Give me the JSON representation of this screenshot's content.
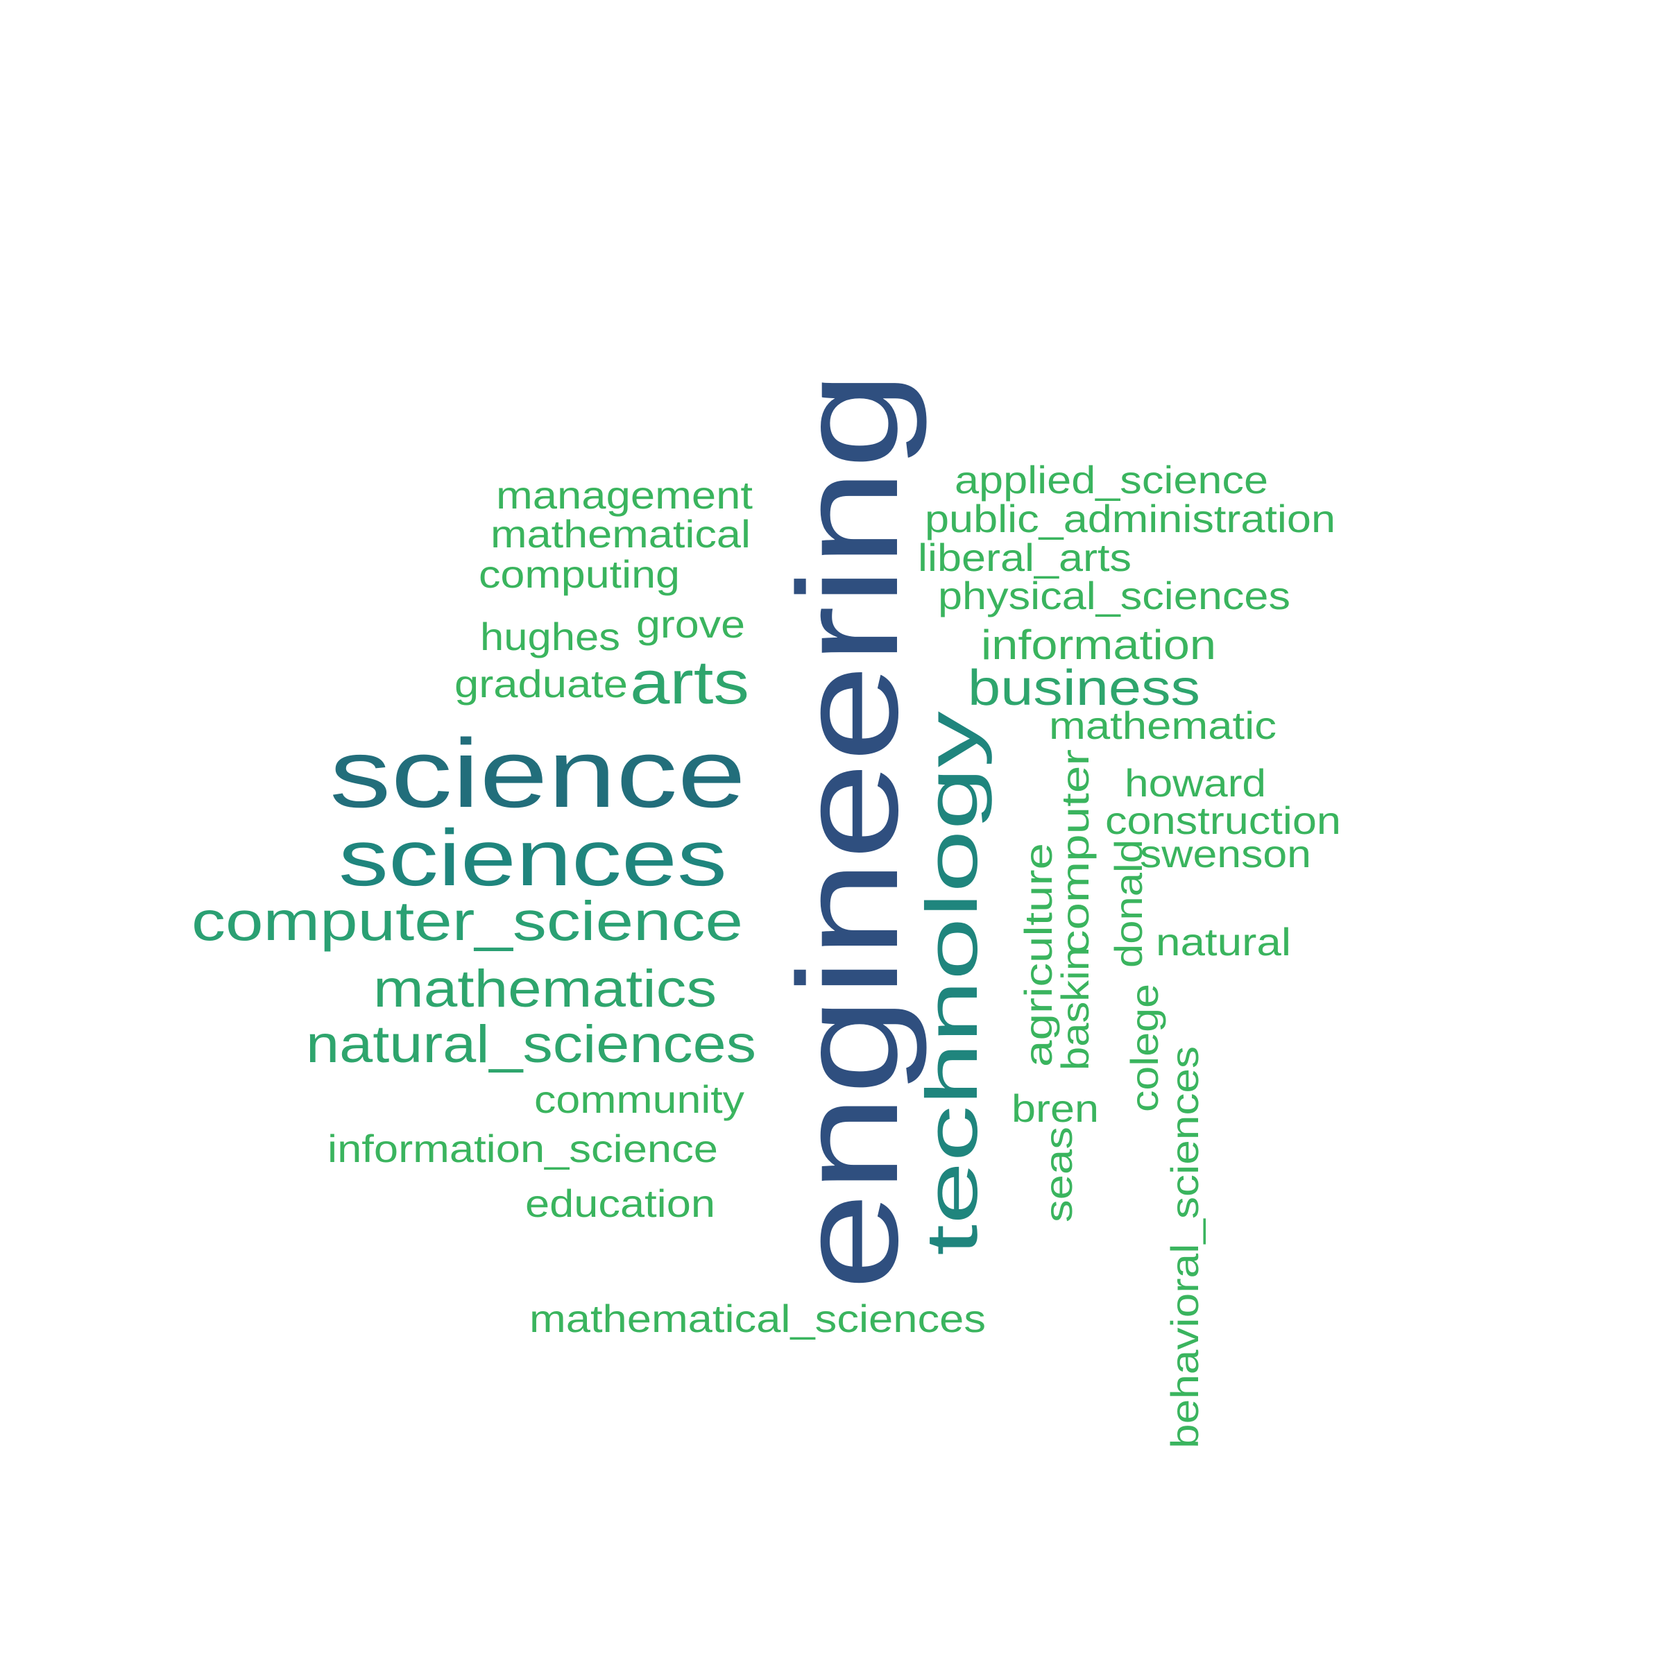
{
  "word_cloud": {
    "background": "#ffffff",
    "palette": {
      "dark_blue": "#2f4f7f",
      "teal_dark": "#226e7b",
      "teal": "#1f857d",
      "green_teal": "#23998a",
      "green": "#2eaa6a",
      "light_green": "#3ab45e"
    },
    "words": [
      {
        "text": "engineering",
        "color": "#2f4f7f",
        "rotated": true
      },
      {
        "text": "science",
        "color": "#226e7b",
        "rotated": false
      },
      {
        "text": "sciences",
        "color": "#1f857d",
        "rotated": false
      },
      {
        "text": "technology",
        "color": "#1f857d",
        "rotated": true
      },
      {
        "text": "computer_science",
        "color": "#2aa073",
        "rotated": false
      },
      {
        "text": "mathematics",
        "color": "#2ea56d",
        "rotated": false
      },
      {
        "text": "natural_sciences",
        "color": "#2ea56d",
        "rotated": false
      },
      {
        "text": "arts",
        "color": "#2ea56d",
        "rotated": false
      },
      {
        "text": "business",
        "color": "#2ea56d",
        "rotated": false
      },
      {
        "text": "management",
        "color": "#3ab45e",
        "rotated": false
      },
      {
        "text": "mathematical",
        "color": "#3ab45e",
        "rotated": false
      },
      {
        "text": "computing",
        "color": "#3ab45e",
        "rotated": false
      },
      {
        "text": "hughes",
        "color": "#3ab45e",
        "rotated": false
      },
      {
        "text": "grove",
        "color": "#3ab45e",
        "rotated": false
      },
      {
        "text": "graduate",
        "color": "#3ab45e",
        "rotated": false
      },
      {
        "text": "applied_science",
        "color": "#3ab45e",
        "rotated": false
      },
      {
        "text": "public_administration",
        "color": "#3ab45e",
        "rotated": false
      },
      {
        "text": "liberal_arts",
        "color": "#3ab45e",
        "rotated": false
      },
      {
        "text": "physical_sciences",
        "color": "#3ab45e",
        "rotated": false
      },
      {
        "text": "information",
        "color": "#3ab45e",
        "rotated": false
      },
      {
        "text": "mathematic",
        "color": "#3ab45e",
        "rotated": false
      },
      {
        "text": "howard",
        "color": "#3ab45e",
        "rotated": false
      },
      {
        "text": "construction",
        "color": "#3ab45e",
        "rotated": false
      },
      {
        "text": "swenson",
        "color": "#3ab45e",
        "rotated": false
      },
      {
        "text": "natural",
        "color": "#3ab45e",
        "rotated": false
      },
      {
        "text": "community",
        "color": "#3ab45e",
        "rotated": false
      },
      {
        "text": "information_science",
        "color": "#3ab45e",
        "rotated": false
      },
      {
        "text": "education",
        "color": "#3ab45e",
        "rotated": false
      },
      {
        "text": "mathematical_sciences",
        "color": "#3ab45e",
        "rotated": false
      },
      {
        "text": "bren",
        "color": "#3ab45e",
        "rotated": false
      },
      {
        "text": "agriculture",
        "color": "#3ab45e",
        "rotated": true
      },
      {
        "text": "baskin",
        "color": "#3ab45e",
        "rotated": true
      },
      {
        "text": "computer",
        "color": "#3ab45e",
        "rotated": true
      },
      {
        "text": "donald",
        "color": "#3ab45e",
        "rotated": true
      },
      {
        "text": "colege",
        "color": "#3ab45e",
        "rotated": true
      },
      {
        "text": "seas",
        "color": "#3ab45e",
        "rotated": true
      },
      {
        "text": "behavioral_sciences",
        "color": "#3ab45e",
        "rotated": true
      }
    ]
  }
}
